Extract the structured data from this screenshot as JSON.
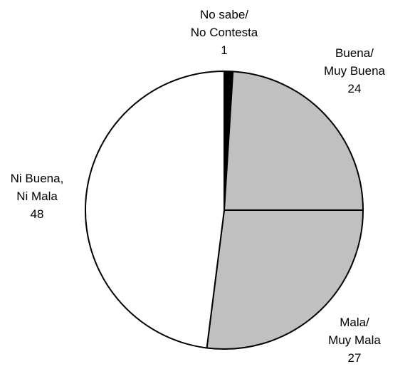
{
  "chart_data": {
    "type": "pie",
    "categories": [
      "No sabe/\nNo Contesta",
      "Buena/\nMuy Buena",
      "Mala/\nMuy Mala",
      "Ni Buena,\nNi Mala"
    ],
    "values": [
      1,
      24,
      27,
      48
    ],
    "colors": [
      "#000000",
      "#c0c0c0",
      "#c0c0c0",
      "#ffffff"
    ]
  }
}
